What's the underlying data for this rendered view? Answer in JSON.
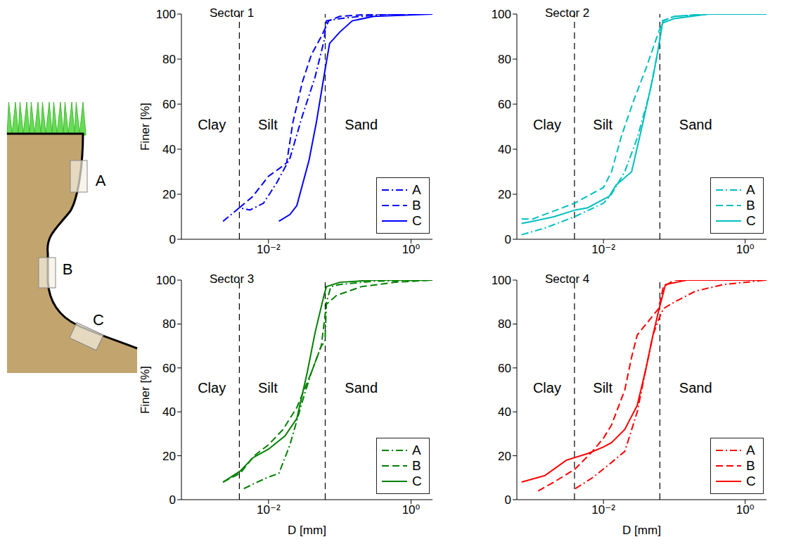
{
  "diagram": {
    "labels": [
      "A",
      "B",
      "C"
    ]
  },
  "chart_data": [
    {
      "type": "line",
      "title": "Sector 1",
      "ylabel": "Finer [%]",
      "log": "x",
      "grid": false,
      "legend": "lower right",
      "xlim": [
        0.0006,
        2
      ],
      "xticks": [
        {
          "value": 0.01,
          "label": "10⁻²"
        },
        {
          "value": 1,
          "label": "10⁰"
        }
      ],
      "ylim": [
        0,
        100
      ],
      "yticks": [
        0,
        20,
        40,
        60,
        80,
        100
      ],
      "boundaries": [
        0.0039,
        0.0625
      ],
      "annotations": [
        {
          "text": "Clay",
          "x": 0.0016,
          "y": 51
        },
        {
          "text": "Silt",
          "x": 0.0098,
          "y": 51
        },
        {
          "text": "Sand",
          "x": 0.2,
          "y": 51
        }
      ],
      "series": [
        {
          "name": "A",
          "color": "#0000ff",
          "line_style": "dashdot",
          "x": [
            0.0023,
            0.0039,
            0.0055,
            0.0085,
            0.013,
            0.02,
            0.03,
            0.045,
            0.06,
            0.065,
            0.1,
            0.2,
            0.5,
            2
          ],
          "values": [
            8,
            14,
            13,
            16,
            25,
            36,
            55,
            72,
            88,
            97,
            98,
            99,
            100,
            100
          ]
        },
        {
          "name": "B",
          "color": "#0000ff",
          "line_style": "dashed",
          "x": [
            0.0039,
            0.006,
            0.01,
            0.015,
            0.018,
            0.022,
            0.03,
            0.04,
            0.055,
            0.07,
            0.1,
            0.3,
            2
          ],
          "values": [
            14,
            19,
            28,
            32,
            34,
            52,
            70,
            82,
            90,
            97,
            99,
            100,
            100
          ]
        },
        {
          "name": "C",
          "color": "#0000ff",
          "line_style": "solid",
          "x": [
            0.014,
            0.02,
            0.025,
            0.037,
            0.047,
            0.062,
            0.072,
            0.1,
            0.15,
            0.3,
            2
          ],
          "values": [
            8,
            11,
            15,
            35,
            52,
            75,
            87,
            92,
            97,
            99,
            100
          ]
        }
      ]
    },
    {
      "type": "line",
      "title": "Sector 2",
      "log": "x",
      "grid": false,
      "legend": "lower right",
      "xlim": [
        0.0006,
        2
      ],
      "xticks": [
        {
          "value": 0.01,
          "label": "10⁻²"
        },
        {
          "value": 1,
          "label": "10⁰"
        }
      ],
      "ylim": [
        0,
        100
      ],
      "yticks": [
        0,
        20,
        40,
        60,
        80,
        100
      ],
      "boundaries": [
        0.0039,
        0.0625
      ],
      "annotations": [
        {
          "text": "Clay",
          "x": 0.0016,
          "y": 51
        },
        {
          "text": "Silt",
          "x": 0.0098,
          "y": 51
        },
        {
          "text": "Sand",
          "x": 0.2,
          "y": 51
        }
      ],
      "series": [
        {
          "name": "A",
          "color": "#00bfbf",
          "line_style": "dashdot",
          "x": [
            0.0007,
            0.0015,
            0.0039,
            0.01,
            0.013,
            0.02,
            0.03,
            0.045,
            0.06,
            0.068,
            0.1,
            0.3,
            2
          ],
          "values": [
            2,
            5,
            10,
            16,
            20,
            30,
            45,
            65,
            85,
            97,
            99,
            100,
            100
          ]
        },
        {
          "name": "B",
          "color": "#00bfbf",
          "line_style": "dashed",
          "x": [
            0.0007,
            0.001,
            0.0039,
            0.01,
            0.013,
            0.018,
            0.027,
            0.04,
            0.06,
            0.07,
            0.1,
            0.3,
            2
          ],
          "values": [
            9,
            9,
            16,
            23,
            30,
            46,
            62,
            76,
            92,
            97,
            99,
            100,
            100
          ]
        },
        {
          "name": "C",
          "color": "#00bfbf",
          "line_style": "solid",
          "x": [
            0.0007,
            0.001,
            0.002,
            0.004,
            0.006,
            0.009,
            0.012,
            0.015,
            0.025,
            0.035,
            0.05,
            0.062,
            0.068,
            0.1,
            0.3,
            2
          ],
          "values": [
            7,
            8,
            10,
            13,
            14,
            17,
            19,
            24,
            30,
            50,
            72,
            88,
            96,
            98,
            100,
            100
          ]
        }
      ]
    },
    {
      "type": "line",
      "title": "Sector 3",
      "xlabel": "D [mm]",
      "ylabel": "Finer [%]",
      "log": "x",
      "grid": false,
      "legend": "lower right",
      "xlim": [
        0.0006,
        2
      ],
      "xticks": [
        {
          "value": 0.01,
          "label": "10⁻²"
        },
        {
          "value": 1,
          "label": "10⁰"
        }
      ],
      "ylim": [
        0,
        100
      ],
      "yticks": [
        0,
        20,
        40,
        60,
        80,
        100
      ],
      "boundaries": [
        0.0039,
        0.0625
      ],
      "annotations": [
        {
          "text": "Clay",
          "x": 0.0016,
          "y": 51
        },
        {
          "text": "Silt",
          "x": 0.0098,
          "y": 51
        },
        {
          "text": "Sand",
          "x": 0.2,
          "y": 51
        }
      ],
      "series": [
        {
          "name": "A",
          "color": "#008000",
          "line_style": "dashdot",
          "x": [
            0.0045,
            0.006,
            0.0095,
            0.014,
            0.02,
            0.03,
            0.04,
            0.055,
            0.062,
            0.065,
            0.075,
            0.1,
            0.3,
            2
          ],
          "values": [
            5,
            7,
            10,
            12,
            25,
            45,
            58,
            70,
            72,
            90,
            97,
            98,
            99.5,
            100
          ]
        },
        {
          "name": "B",
          "color": "#008000",
          "line_style": "dashed",
          "x": [
            0.0023,
            0.004,
            0.0063,
            0.01,
            0.016,
            0.025,
            0.04,
            0.055,
            0.065,
            0.09,
            0.2,
            0.6,
            2
          ],
          "values": [
            8,
            12,
            20,
            25,
            32,
            42,
            58,
            70,
            89,
            93,
            97,
            99,
            100
          ]
        },
        {
          "name": "C",
          "color": "#008000",
          "line_style": "solid",
          "x": [
            0.0023,
            0.004,
            0.006,
            0.01,
            0.017,
            0.025,
            0.035,
            0.045,
            0.06,
            0.065,
            0.1,
            0.3,
            2
          ],
          "values": [
            8,
            13,
            19,
            23,
            29,
            37,
            58,
            76,
            93,
            97,
            99,
            100,
            100
          ]
        }
      ]
    },
    {
      "type": "line",
      "title": "Sector 4",
      "xlabel": "D [mm]",
      "log": "x",
      "grid": false,
      "legend": "lower right",
      "xlim": [
        0.0006,
        2
      ],
      "xticks": [
        {
          "value": 0.01,
          "label": "10⁻²"
        },
        {
          "value": 1,
          "label": "10⁰"
        }
      ],
      "ylim": [
        0,
        100
      ],
      "yticks": [
        0,
        20,
        40,
        60,
        80,
        100
      ],
      "boundaries": [
        0.0039,
        0.0625
      ],
      "annotations": [
        {
          "text": "Clay",
          "x": 0.0016,
          "y": 51
        },
        {
          "text": "Silt",
          "x": 0.0098,
          "y": 51
        },
        {
          "text": "Sand",
          "x": 0.2,
          "y": 51
        }
      ],
      "series": [
        {
          "name": "A",
          "color": "#ff0000",
          "line_style": "dashdot",
          "x": [
            0.004,
            0.007,
            0.012,
            0.02,
            0.03,
            0.04,
            0.05,
            0.06,
            0.07,
            0.1,
            0.2,
            0.5,
            2
          ],
          "values": [
            5,
            10,
            16,
            22,
            40,
            60,
            75,
            82,
            87,
            90,
            95,
            98,
            100
          ]
        },
        {
          "name": "B",
          "color": "#ff0000",
          "line_style": "dashed",
          "x": [
            0.0012,
            0.002,
            0.004,
            0.007,
            0.01,
            0.013,
            0.02,
            0.025,
            0.03,
            0.04,
            0.06,
            0.07,
            0.1,
            2
          ],
          "values": [
            4,
            8,
            14,
            22,
            28,
            34,
            50,
            65,
            75,
            80,
            87,
            97,
            100,
            100
          ]
        },
        {
          "name": "C",
          "color": "#ff0000",
          "line_style": "solid",
          "x": [
            0.0007,
            0.0015,
            0.003,
            0.006,
            0.01,
            0.013,
            0.02,
            0.03,
            0.04,
            0.05,
            0.06,
            0.075,
            0.15,
            2
          ],
          "values": [
            8,
            11,
            18,
            21,
            24,
            26,
            32,
            43,
            60,
            75,
            86,
            98,
            100,
            100
          ]
        }
      ]
    }
  ]
}
